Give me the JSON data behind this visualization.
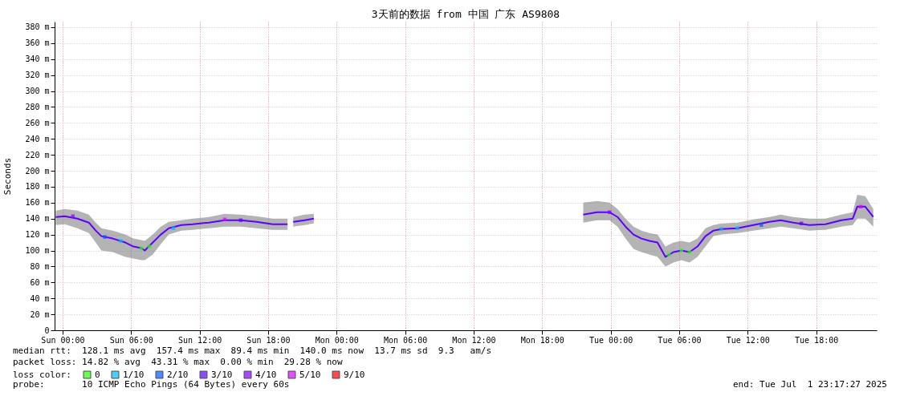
{
  "chart_data": {
    "type": "line",
    "title": "3天前的数据 from 中国 广东 AS9808",
    "ylabel": "Seconds",
    "legend_title": "loss color:",
    "legend": "bottom",
    "annotations": [
      "median rtt:  128.1 ms avg  157.4 ms max  89.4 ms min  140.0 ms now  13.7 ms sd  9.3   am/s",
      "packet loss: 14.82 % avg  43.31 % max  0.00 % min  29.28 % now",
      "probe:       10 ICMP Echo Pings (64 Bytes) every 60s",
      "end: Tue Jul  1 23:17:27 2025"
    ],
    "xlim": [
      "2025-06-28T23:18",
      "2025-07-01T23:18"
    ],
    "xticks": [
      {
        "value": "2025-06-29T00:00",
        "label": "Sun 00:00"
      },
      {
        "value": "2025-06-29T06:00",
        "label": "Sun 06:00"
      },
      {
        "value": "2025-06-29T12:00",
        "label": "Sun 12:00"
      },
      {
        "value": "2025-06-29T18:00",
        "label": "Sun 18:00"
      },
      {
        "value": "2025-06-30T00:00",
        "label": "Mon 00:00"
      },
      {
        "value": "2025-06-30T06:00",
        "label": "Mon 06:00"
      },
      {
        "value": "2025-06-30T12:00",
        "label": "Mon 12:00"
      },
      {
        "value": "2025-06-30T18:00",
        "label": "Mon 18:00"
      },
      {
        "value": "2025-07-01T00:00",
        "label": "Tue 00:00"
      },
      {
        "value": "2025-07-01T06:00",
        "label": "Tue 06:00"
      },
      {
        "value": "2025-07-01T12:00",
        "label": "Tue 12:00"
      },
      {
        "value": "2025-07-01T18:00",
        "label": "Tue 18:00"
      }
    ],
    "ylim": [
      0,
      387
    ],
    "yticks": [
      0,
      {
        "value": 20,
        "label": "20 m"
      },
      {
        "value": 40,
        "label": "40 m"
      },
      {
        "value": 60,
        "label": "60 m"
      },
      {
        "value": 80,
        "label": "80 m"
      },
      {
        "value": 100,
        "label": "100 m"
      },
      {
        "value": 120,
        "label": "120 m"
      },
      {
        "value": 140,
        "label": "140 m"
      },
      {
        "value": 160,
        "label": "160 m"
      },
      {
        "value": 180,
        "label": "180 m"
      },
      {
        "value": 200,
        "label": "200 m"
      },
      {
        "value": 220,
        "label": "220 m"
      },
      {
        "value": 240,
        "label": "240 m"
      },
      {
        "value": 260,
        "label": "260 m"
      },
      {
        "value": 280,
        "label": "280 m"
      },
      {
        "value": 300,
        "label": "300 m"
      },
      {
        "value": 320,
        "label": "320 m"
      },
      {
        "value": 340,
        "label": "340 m"
      },
      {
        "value": 360,
        "label": "360 m"
      },
      {
        "value": 380,
        "label": "380 m"
      }
    ],
    "grid": true,
    "series": [
      {
        "color": "#5e00ff",
        "x": [
          "2025-06-28T23:24",
          "2025-06-29T00:12",
          "2025-06-29T01:18",
          "2025-06-29T02:18",
          "2025-06-29T02:54",
          "2025-06-29T03:24",
          "2025-06-29T04:24",
          "2025-06-29T05:30",
          "2025-06-29T06:12",
          "2025-06-29T06:54",
          "2025-06-29T07:12",
          "2025-06-29T07:54",
          "2025-06-29T08:36",
          "2025-06-29T09:18",
          "2025-06-29T10:24",
          "2025-06-29T11:24",
          "2025-06-29T12:48",
          "2025-06-29T14:12",
          "2025-06-29T15:36",
          "2025-06-29T17:00",
          "2025-06-29T18:24",
          "2025-06-29T19:42",
          "2025-06-29T20:00",
          "2025-06-29T20:12",
          "2025-06-29T21:12",
          "2025-06-29T22:00",
          "2025-06-30T06:00",
          "2025-06-30T21:36",
          "2025-06-30T22:48",
          "2025-06-30T23:54",
          "2025-07-01T00:36",
          "2025-07-01T01:18",
          "2025-07-01T02:00",
          "2025-07-01T02:42",
          "2025-07-01T03:24",
          "2025-07-01T04:06",
          "2025-07-01T04:48",
          "2025-07-01T05:30",
          "2025-07-01T06:12",
          "2025-07-01T06:54",
          "2025-07-01T07:36",
          "2025-07-01T08:18",
          "2025-07-01T09:00",
          "2025-07-01T09:42",
          "2025-07-01T11:06",
          "2025-07-01T12:30",
          "2025-07-01T13:54",
          "2025-07-01T14:54",
          "2025-07-01T16:00",
          "2025-07-01T17:24",
          "2025-07-01T18:48",
          "2025-07-01T20:12",
          "2025-07-01T21:12",
          "2025-07-01T21:36",
          "2025-07-01T22:18",
          "2025-07-01T23:00"
        ],
        "values": [
          142,
          143,
          140,
          135,
          125,
          118,
          115,
          110,
          105,
          103,
          100,
          110,
          120,
          128,
          132,
          133,
          135,
          138,
          138,
          136,
          133,
          133,
          null,
          136,
          138,
          140,
          null,
          145,
          148,
          148,
          142,
          130,
          120,
          115,
          112,
          110,
          92,
          98,
          100,
          98,
          105,
          118,
          125,
          127,
          128,
          132,
          136,
          138,
          135,
          132,
          133,
          138,
          140,
          155,
          155,
          142
        ],
        "lower": [
          132,
          133,
          128,
          122,
          110,
          100,
          98,
          92,
          90,
          88,
          88,
          95,
          108,
          120,
          125,
          126,
          128,
          130,
          130,
          128,
          126,
          126,
          null,
          130,
          132,
          134,
          null,
          135,
          138,
          138,
          130,
          115,
          102,
          98,
          95,
          92,
          80,
          85,
          88,
          85,
          92,
          105,
          118,
          120,
          122,
          125,
          128,
          130,
          128,
          125,
          126,
          130,
          132,
          140,
          140,
          130
        ],
        "upper": [
          150,
          152,
          150,
          145,
          135,
          128,
          125,
          120,
          115,
          113,
          112,
          120,
          130,
          136,
          138,
          140,
          142,
          146,
          145,
          143,
          140,
          140,
          null,
          142,
          145,
          146,
          null,
          160,
          162,
          160,
          152,
          140,
          130,
          125,
          122,
          120,
          105,
          110,
          112,
          110,
          115,
          128,
          132,
          134,
          135,
          139,
          142,
          145,
          142,
          140,
          140,
          145,
          148,
          170,
          168,
          152
        ]
      },
      {
        "type": "scatter",
        "name": "0",
        "color": "#26ff00",
        "marker": "square",
        "x": [
          "2025-06-29T06:54",
          "2025-06-29T07:36",
          "2025-07-01T05:06",
          "2025-07-01T06:12",
          "2025-07-01T06:54"
        ],
        "values": [
          103,
          105,
          95,
          100,
          98
        ]
      },
      {
        "type": "scatter",
        "name": "1/10",
        "color": "#00b8ff",
        "marker": "square",
        "x": [
          "2025-06-29T05:06",
          "2025-06-29T09:42",
          "2025-07-01T09:42",
          "2025-07-01T11:06"
        ],
        "values": [
          112,
          128,
          127,
          128
        ]
      },
      {
        "type": "scatter",
        "name": "2/10",
        "color": "#0059ff",
        "marker": "square",
        "x": [
          "2025-06-29T03:42",
          "2025-07-01T13:12"
        ],
        "values": [
          117,
          132
        ]
      },
      {
        "type": "scatter",
        "name": "3/10",
        "color": "#5e00ff",
        "marker": "square",
        "x": [
          "2025-06-29T15:36",
          "2025-07-01T16:42"
        ],
        "values": [
          138,
          134
        ]
      },
      {
        "type": "scatter",
        "name": "4/10",
        "color": "#7e00ff",
        "marker": "square",
        "x": [
          "2025-06-29T00:54",
          "2025-06-30T23:54"
        ],
        "values": [
          143,
          148
        ]
      },
      {
        "type": "scatter",
        "name": "5/10",
        "color": "#dd00ff",
        "marker": "square",
        "x": [
          "2025-06-29T14:12",
          "2025-07-01T21:54"
        ],
        "values": [
          139,
          155
        ]
      },
      {
        "type": "scatter",
        "name": "9/10",
        "color": "#ff0000",
        "marker": "square"
      }
    ]
  }
}
